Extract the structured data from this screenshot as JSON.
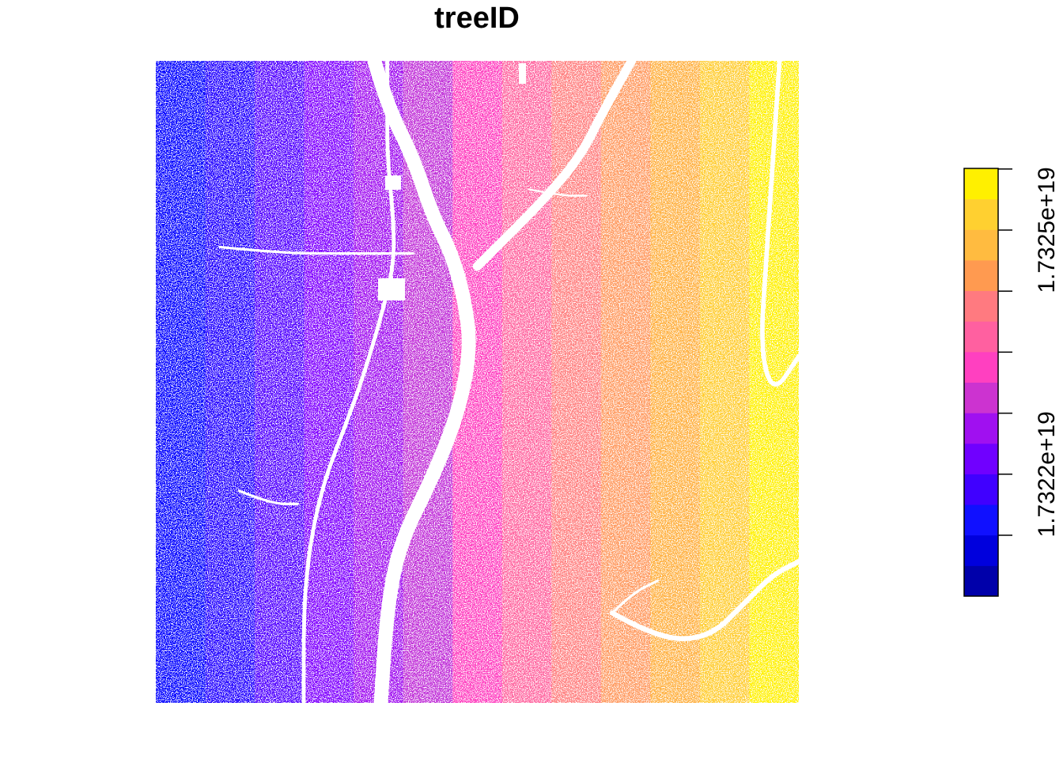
{
  "chart_data": {
    "type": "scatter",
    "title": "treeID",
    "legend": {
      "placement": "right",
      "colors": [
        "#0000AA",
        "#0000DD",
        "#1010FF",
        "#4000FF",
        "#7000FF",
        "#A010F0",
        "#CC33D0",
        "#FF40C0",
        "#FF60A0",
        "#FF7A80",
        "#FF9A50",
        "#FFBB40",
        "#FFD030",
        "#FFF000"
      ],
      "tick_labels": [
        "1.7322e+19",
        "1.7325e+19"
      ],
      "tick_count": 7
    },
    "color_bands": [
      "#0000FF",
      "#2000FF",
      "#5000FF",
      "#7F00FF",
      "#A010F0",
      "#C030D8",
      "#FF40C0",
      "#FF66A0",
      "#FF8080",
      "#FF9A60",
      "#FFB040",
      "#FFCC30",
      "#FFF000"
    ],
    "gaps": [
      {
        "kind": "river",
        "points": [
          [
            0.34,
            0.0
          ],
          [
            0.36,
            0.07
          ],
          [
            0.4,
            0.15
          ],
          [
            0.43,
            0.24
          ],
          [
            0.46,
            0.3
          ],
          [
            0.48,
            0.37
          ],
          [
            0.49,
            0.45
          ],
          [
            0.47,
            0.55
          ],
          [
            0.43,
            0.65
          ],
          [
            0.38,
            0.75
          ],
          [
            0.36,
            0.85
          ],
          [
            0.35,
            1.0
          ]
        ],
        "width": 0.022
      },
      {
        "kind": "river",
        "points": [
          [
            0.74,
            0.0
          ],
          [
            0.7,
            0.07
          ],
          [
            0.66,
            0.15
          ],
          [
            0.6,
            0.22
          ],
          [
            0.52,
            0.3
          ],
          [
            0.5,
            0.32
          ]
        ],
        "width": 0.014
      },
      {
        "kind": "river",
        "points": [
          [
            0.36,
            0.0
          ],
          [
            0.36,
            0.07
          ],
          [
            0.36,
            0.15
          ],
          [
            0.37,
            0.25
          ],
          [
            0.37,
            0.32
          ],
          [
            0.35,
            0.4
          ],
          [
            0.32,
            0.5
          ],
          [
            0.29,
            0.58
          ],
          [
            0.26,
            0.66
          ],
          [
            0.24,
            0.75
          ],
          [
            0.23,
            0.85
          ],
          [
            0.23,
            1.0
          ]
        ],
        "width": 0.006
      },
      {
        "kind": "stream",
        "points": [
          [
            0.1,
            0.29
          ],
          [
            0.2,
            0.3
          ],
          [
            0.3,
            0.3
          ],
          [
            0.4,
            0.3
          ]
        ],
        "width": 0.004
      },
      {
        "kind": "stream",
        "points": [
          [
            0.97,
            0.0
          ],
          [
            0.96,
            0.15
          ],
          [
            0.95,
            0.3
          ],
          [
            0.94,
            0.45
          ],
          [
            0.96,
            0.52
          ],
          [
            1.0,
            0.46
          ]
        ],
        "width": 0.007
      },
      {
        "kind": "stream",
        "points": [
          [
            0.71,
            0.86
          ],
          [
            0.78,
            0.9
          ],
          [
            0.86,
            0.9
          ],
          [
            0.92,
            0.84
          ],
          [
            0.96,
            0.8
          ],
          [
            1.0,
            0.78
          ]
        ],
        "width": 0.008
      },
      {
        "kind": "stream",
        "points": [
          [
            0.71,
            0.86
          ],
          [
            0.74,
            0.83
          ],
          [
            0.78,
            0.81
          ]
        ],
        "width": 0.004
      },
      {
        "kind": "stream",
        "points": [
          [
            0.13,
            0.67
          ],
          [
            0.18,
            0.69
          ],
          [
            0.22,
            0.69
          ]
        ],
        "width": 0.004
      },
      {
        "kind": "stream",
        "points": [
          [
            0.58,
            0.2
          ],
          [
            0.63,
            0.21
          ],
          [
            0.67,
            0.21
          ]
        ],
        "width": 0.003
      }
    ]
  }
}
